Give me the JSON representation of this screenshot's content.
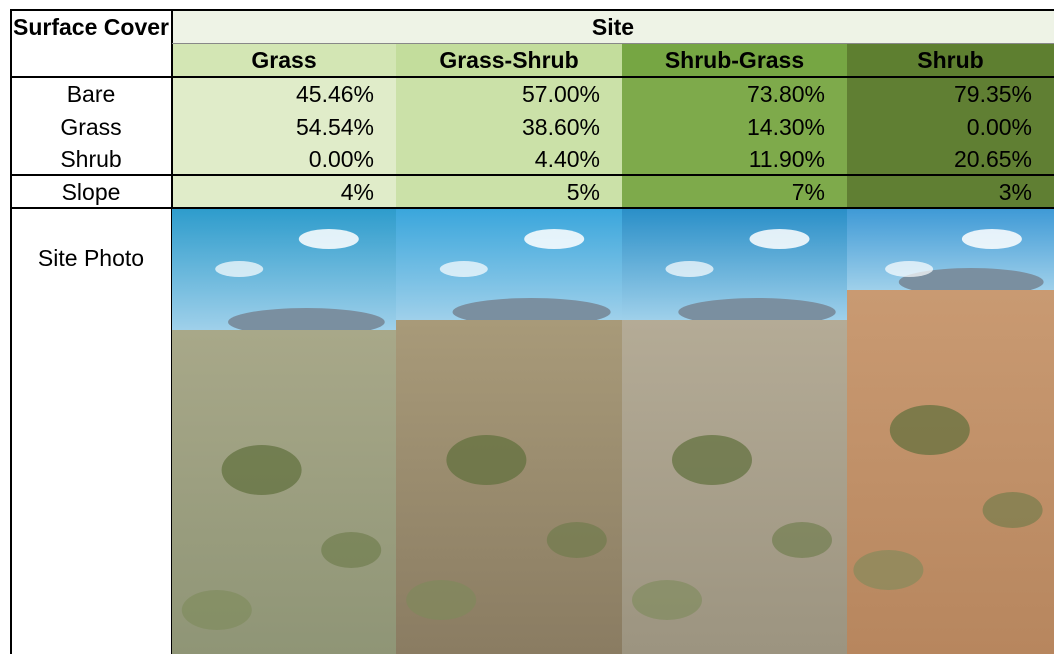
{
  "table": {
    "corner": "Surface Cover",
    "group_header": "Site",
    "columns": [
      "Grass",
      "Grass-Shrub",
      "Shrub-Grass",
      "Shrub"
    ],
    "rows": [
      {
        "label": "Bare",
        "values": [
          "45.46%",
          "57.00%",
          "73.80%",
          "79.35%"
        ]
      },
      {
        "label": "Grass",
        "values": [
          "54.54%",
          "38.60%",
          "14.30%",
          "0.00%"
        ]
      },
      {
        "label": "Shrub",
        "values": [
          "0.00%",
          "4.40%",
          "11.90%",
          "20.65%"
        ]
      }
    ],
    "slope": {
      "label": "Slope",
      "values": [
        "4%",
        "5%",
        "7%",
        "3%"
      ]
    },
    "photo_label": "Site Photo"
  }
}
